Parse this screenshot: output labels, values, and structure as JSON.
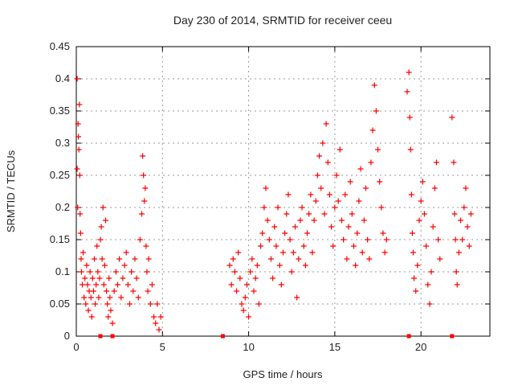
{
  "chart_data": {
    "type": "scatter",
    "title": "Day 230 of 2014, SRMTID for receiver ceeu",
    "xlabel": "GPS time / hours",
    "ylabel": "SRMTID / TECUs",
    "xlim": [
      0,
      24
    ],
    "ylim": [
      0,
      0.45
    ],
    "grid": true,
    "marker_color": "#ff0000",
    "marker": "+",
    "x_ticks": [
      0,
      5,
      10,
      15,
      20
    ],
    "x_tick_labels": [
      "0",
      "5",
      "10",
      "15",
      "20"
    ],
    "y_ticks": [
      0,
      0.05,
      0.1,
      0.15,
      0.2,
      0.25,
      0.3,
      0.35,
      0.4,
      0.45
    ],
    "y_tick_labels": [
      "0",
      "0.05",
      "0.1",
      "0.15",
      "0.2",
      "0.25",
      "0.3",
      "0.35",
      "0.4",
      "0.45"
    ],
    "zero_markers_x": [
      1.4,
      2.1,
      8.5,
      19.3,
      21.8
    ],
    "series": [
      {
        "name": "SRMTID",
        "points": [
          [
            0.05,
            0.4
          ],
          [
            0.05,
            0.26
          ],
          [
            0.08,
            0.2
          ],
          [
            0.1,
            0.33
          ],
          [
            0.12,
            0.31
          ],
          [
            0.15,
            0.29
          ],
          [
            0.18,
            0.36
          ],
          [
            0.2,
            0.25
          ],
          [
            0.22,
            0.19
          ],
          [
            0.25,
            0.16
          ],
          [
            0.28,
            0.12
          ],
          [
            0.3,
            0.1
          ],
          [
            0.35,
            0.08
          ],
          [
            0.4,
            0.13
          ],
          [
            0.45,
            0.06
          ],
          [
            0.5,
            0.09
          ],
          [
            0.55,
            0.05
          ],
          [
            0.6,
            0.11
          ],
          [
            0.65,
            0.08
          ],
          [
            0.7,
            0.04
          ],
          [
            0.75,
            0.07
          ],
          [
            0.8,
            0.1
          ],
          [
            0.85,
            0.06
          ],
          [
            0.9,
            0.03
          ],
          [
            0.95,
            0.09
          ],
          [
            1.0,
            0.07
          ],
          [
            1.05,
            0.12
          ],
          [
            1.1,
            0.05
          ],
          [
            1.15,
            0.08
          ],
          [
            1.2,
            0.14
          ],
          [
            1.25,
            0.1
          ],
          [
            1.3,
            0.06
          ],
          [
            1.35,
            0.09
          ],
          [
            1.4,
            0.15
          ],
          [
            1.45,
            0.17
          ],
          [
            1.5,
            0.12
          ],
          [
            1.55,
            0.2
          ],
          [
            1.6,
            0.08
          ],
          [
            1.65,
            0.11
          ],
          [
            1.7,
            0.18
          ],
          [
            1.75,
            0.07
          ],
          [
            1.8,
            0.05
          ],
          [
            1.85,
            0.03
          ],
          [
            1.9,
            0.09
          ],
          [
            1.95,
            0.06
          ],
          [
            2.0,
            0.04
          ],
          [
            2.1,
            0.02
          ],
          [
            2.2,
            0.07
          ],
          [
            2.3,
            0.1
          ],
          [
            2.4,
            0.08
          ],
          [
            2.5,
            0.12
          ],
          [
            2.6,
            0.06
          ],
          [
            2.7,
            0.09
          ],
          [
            2.8,
            0.11
          ],
          [
            2.9,
            0.13
          ],
          [
            3.0,
            0.08
          ],
          [
            3.1,
            0.05
          ],
          [
            3.2,
            0.1
          ],
          [
            3.3,
            0.07
          ],
          [
            3.4,
            0.12
          ],
          [
            3.5,
            0.09
          ],
          [
            3.6,
            0.06
          ],
          [
            3.7,
            0.15
          ],
          [
            3.8,
            0.19
          ],
          [
            3.85,
            0.28
          ],
          [
            3.9,
            0.25
          ],
          [
            3.95,
            0.21
          ],
          [
            4.0,
            0.23
          ],
          [
            4.05,
            0.14
          ],
          [
            4.1,
            0.1
          ],
          [
            4.15,
            0.07
          ],
          [
            4.2,
            0.12
          ],
          [
            4.3,
            0.05
          ],
          [
            4.4,
            0.08
          ],
          [
            4.5,
            0.03
          ],
          [
            4.6,
            0.02
          ],
          [
            4.7,
            0.05
          ],
          [
            4.8,
            0.01
          ],
          [
            4.9,
            0.03
          ],
          [
            8.9,
            0.11
          ],
          [
            9.0,
            0.08
          ],
          [
            9.1,
            0.12
          ],
          [
            9.2,
            0.1
          ],
          [
            9.3,
            0.07
          ],
          [
            9.4,
            0.13
          ],
          [
            9.5,
            0.09
          ],
          [
            9.6,
            0.05
          ],
          [
            9.7,
            0.04
          ],
          [
            9.8,
            0.06
          ],
          [
            9.9,
            0.08
          ],
          [
            10.0,
            0.03
          ],
          [
            10.1,
            0.1
          ],
          [
            10.2,
            0.12
          ],
          [
            10.3,
            0.07
          ],
          [
            10.4,
            0.09
          ],
          [
            10.5,
            0.11
          ],
          [
            10.6,
            0.05
          ],
          [
            10.7,
            0.14
          ],
          [
            10.8,
            0.16
          ],
          [
            10.9,
            0.2
          ],
          [
            11.0,
            0.23
          ],
          [
            11.1,
            0.18
          ],
          [
            11.2,
            0.15
          ],
          [
            11.3,
            0.12
          ],
          [
            11.4,
            0.09
          ],
          [
            11.5,
            0.17
          ],
          [
            11.6,
            0.14
          ],
          [
            11.7,
            0.2
          ],
          [
            11.8,
            0.11
          ],
          [
            11.9,
            0.08
          ],
          [
            12.0,
            0.13
          ],
          [
            12.1,
            0.16
          ],
          [
            12.2,
            0.19
          ],
          [
            12.3,
            0.22
          ],
          [
            12.4,
            0.15
          ],
          [
            12.5,
            0.1
          ],
          [
            12.6,
            0.13
          ],
          [
            12.7,
            0.17
          ],
          [
            12.8,
            0.06
          ],
          [
            12.9,
            0.12
          ],
          [
            13.0,
            0.18
          ],
          [
            13.1,
            0.2
          ],
          [
            13.2,
            0.14
          ],
          [
            13.3,
            0.11
          ],
          [
            13.4,
            0.16
          ],
          [
            13.5,
            0.19
          ],
          [
            13.6,
            0.22
          ],
          [
            13.7,
            0.13
          ],
          [
            13.8,
            0.18
          ],
          [
            13.9,
            0.21
          ],
          [
            14.0,
            0.25
          ],
          [
            14.1,
            0.28
          ],
          [
            14.2,
            0.23
          ],
          [
            14.3,
            0.3
          ],
          [
            14.4,
            0.19
          ],
          [
            14.5,
            0.33
          ],
          [
            14.6,
            0.27
          ],
          [
            14.7,
            0.22
          ],
          [
            14.8,
            0.17
          ],
          [
            14.9,
            0.14
          ],
          [
            15.0,
            0.2
          ],
          [
            15.1,
            0.25
          ],
          [
            15.2,
            0.21
          ],
          [
            15.3,
            0.29
          ],
          [
            15.4,
            0.18
          ],
          [
            15.5,
            0.15
          ],
          [
            15.6,
            0.22
          ],
          [
            15.7,
            0.12
          ],
          [
            15.8,
            0.17
          ],
          [
            15.9,
            0.24
          ],
          [
            16.0,
            0.19
          ],
          [
            16.1,
            0.14
          ],
          [
            16.2,
            0.11
          ],
          [
            16.3,
            0.16
          ],
          [
            16.4,
            0.21
          ],
          [
            16.5,
            0.26
          ],
          [
            16.6,
            0.13
          ],
          [
            16.7,
            0.18
          ],
          [
            16.8,
            0.23
          ],
          [
            16.9,
            0.15
          ],
          [
            17.0,
            0.12
          ],
          [
            17.1,
            0.27
          ],
          [
            17.2,
            0.32
          ],
          [
            17.3,
            0.39
          ],
          [
            17.4,
            0.35
          ],
          [
            17.5,
            0.29
          ],
          [
            17.6,
            0.24
          ],
          [
            17.7,
            0.2
          ],
          [
            17.8,
            0.16
          ],
          [
            17.9,
            0.13
          ],
          [
            18.0,
            0.15
          ],
          [
            19.2,
            0.38
          ],
          [
            19.3,
            0.41
          ],
          [
            19.35,
            0.34
          ],
          [
            19.4,
            0.29
          ],
          [
            19.45,
            0.22
          ],
          [
            19.5,
            0.16
          ],
          [
            19.55,
            0.13
          ],
          [
            19.6,
            0.09
          ],
          [
            19.7,
            0.07
          ],
          [
            19.8,
            0.11
          ],
          [
            19.9,
            0.18
          ],
          [
            20.0,
            0.21
          ],
          [
            20.1,
            0.24
          ],
          [
            20.2,
            0.19
          ],
          [
            20.3,
            0.14
          ],
          [
            20.4,
            0.08
          ],
          [
            20.5,
            0.05
          ],
          [
            20.6,
            0.1
          ],
          [
            20.7,
            0.17
          ],
          [
            20.8,
            0.23
          ],
          [
            20.9,
            0.27
          ],
          [
            21.0,
            0.15
          ],
          [
            21.1,
            0.12
          ],
          [
            21.8,
            0.34
          ],
          [
            21.9,
            0.27
          ],
          [
            21.95,
            0.19
          ],
          [
            22.0,
            0.15
          ],
          [
            22.05,
            0.1
          ],
          [
            22.1,
            0.08
          ],
          [
            22.2,
            0.13
          ],
          [
            22.3,
            0.18
          ],
          [
            22.4,
            0.15
          ],
          [
            22.5,
            0.2
          ],
          [
            22.6,
            0.23
          ],
          [
            22.7,
            0.17
          ],
          [
            22.8,
            0.14
          ],
          [
            22.9,
            0.19
          ]
        ]
      }
    ]
  }
}
